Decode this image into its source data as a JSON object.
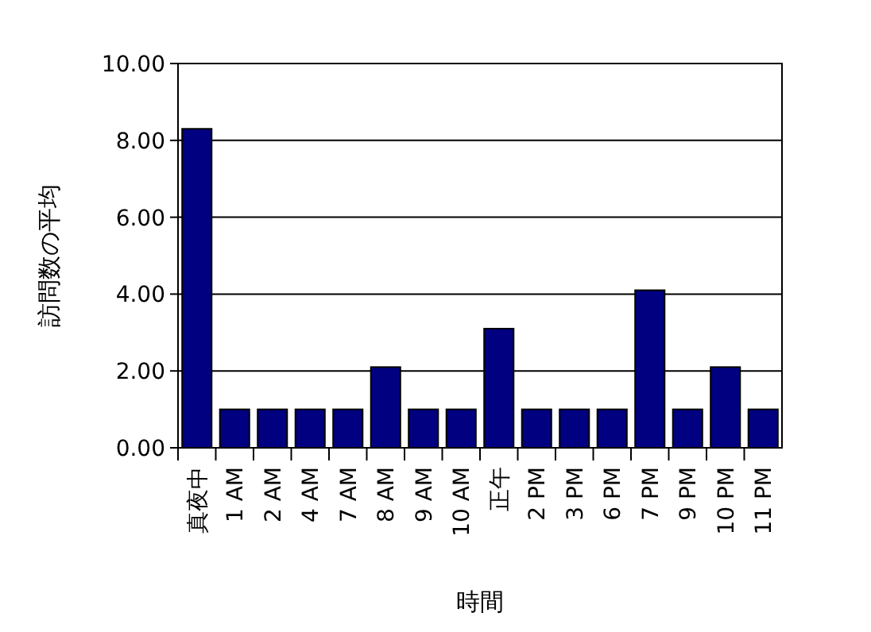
{
  "chart_data": {
    "type": "bar",
    "xlabel": "時間",
    "ylabel": "訪問数の平均",
    "categories": [
      "真夜中",
      "1 AM",
      "2 AM",
      "4 AM",
      "7 AM",
      "8 AM",
      "9 AM",
      "10 AM",
      "正午",
      "2 PM",
      "3 PM",
      "6 PM",
      "7 PM",
      "9 PM",
      "10 PM",
      "11 PM"
    ],
    "values": [
      8.3,
      1.0,
      1.0,
      1.0,
      1.0,
      2.1,
      1.0,
      1.0,
      3.1,
      1.0,
      1.0,
      1.0,
      4.1,
      1.0,
      2.1,
      1.0
    ],
    "color": "#000080",
    "ylim": [
      0,
      10
    ],
    "yticks": [
      {
        "value": 0,
        "label": "0.00"
      },
      {
        "value": 2,
        "label": "2.00"
      },
      {
        "value": 4,
        "label": "4.00"
      },
      {
        "value": 6,
        "label": "6.00"
      },
      {
        "value": 8,
        "label": "8.00"
      },
      {
        "value": 10,
        "label": "10.00"
      }
    ],
    "grid": "y"
  }
}
